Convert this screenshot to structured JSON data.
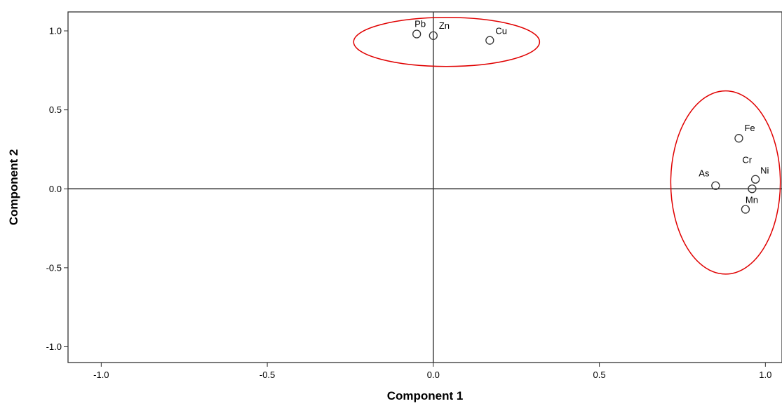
{
  "chart_data": {
    "type": "scatter",
    "title": "",
    "xlabel": "Component 1",
    "ylabel": "Component 2",
    "xlim": [
      -1.1,
      1.05
    ],
    "ylim": [
      -1.1,
      1.12
    ],
    "x_ticks": [
      -1.0,
      -0.5,
      0.0,
      0.5,
      1.0
    ],
    "x_tick_labels": [
      "-1.0",
      "-0.5",
      "0.0",
      "0.5",
      "1.0"
    ],
    "y_ticks": [
      -1.0,
      -0.5,
      0.0,
      0.5,
      1.0
    ],
    "y_tick_labels": [
      "-1.0",
      "-0.5",
      "0.0",
      "0.5",
      "1.0"
    ],
    "grid": false,
    "reference_lines": {
      "x": 0,
      "y": 0
    },
    "points": [
      {
        "label": "Pb",
        "x": -0.05,
        "y": 0.98
      },
      {
        "label": "Zn",
        "x": 0.0,
        "y": 0.97
      },
      {
        "label": "Cu",
        "x": 0.17,
        "y": 0.94
      },
      {
        "label": "Fe",
        "x": 0.92,
        "y": 0.32
      },
      {
        "label": "Cr",
        "x": 0.96,
        "y": 0.0
      },
      {
        "label": "Ni",
        "x": 0.97,
        "y": 0.06
      },
      {
        "label": "As",
        "x": 0.85,
        "y": 0.02
      },
      {
        "label": "Mn",
        "x": 0.94,
        "y": -0.13
      }
    ],
    "annotations": [
      {
        "type": "ellipse",
        "color": "#e00000",
        "cx": 0.04,
        "cy": 0.93,
        "rx": 0.28,
        "ry": 0.155
      },
      {
        "type": "ellipse",
        "color": "#e00000",
        "cx": 0.88,
        "cy": 0.04,
        "rx": 0.165,
        "ry": 0.58
      }
    ],
    "colors": {
      "marker": "#333333",
      "annotation": "#e00000",
      "axis": "#333333"
    }
  }
}
